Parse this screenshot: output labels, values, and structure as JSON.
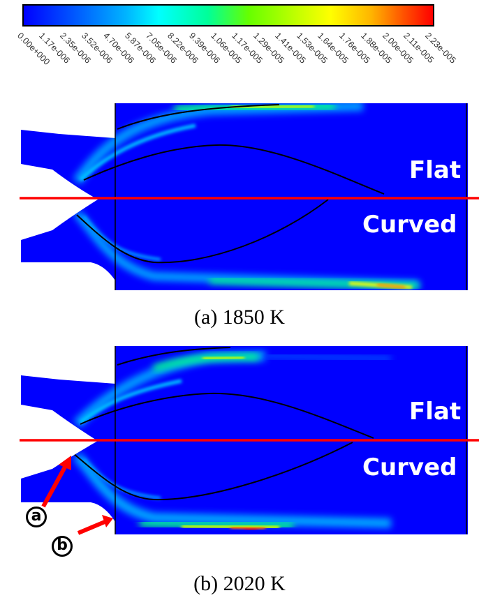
{
  "colorbar": {
    "labels": [
      "0.00e+000",
      "1.17e-006",
      "2.35e-006",
      "3.52e-006",
      "4.70e-006",
      "5.87e-006",
      "7.05e-006",
      "8.22e-006",
      "9.39e-006",
      "1.06e-005",
      "1.17e-005",
      "1.29e-005",
      "1.41e-005",
      "1.53e-005",
      "1.64e-005",
      "1.76e-005",
      "1.88e-005",
      "2.00e-005",
      "2.11e-005",
      "2.23e-005"
    ],
    "colormap": [
      "#0000ff",
      "#00ffff",
      "#00ff00",
      "#ffff00",
      "#ff0000"
    ]
  },
  "panels": [
    {
      "id": "a",
      "caption": "(a) 1850 K",
      "top_label": "Flat",
      "bottom_label": "Curved"
    },
    {
      "id": "b",
      "caption": "(b) 2020 K",
      "top_label": "Flat",
      "bottom_label": "Curved",
      "markers": [
        {
          "label": "a"
        },
        {
          "label": "b"
        }
      ]
    }
  ],
  "colors": {
    "field_background": "#0000ff",
    "divider_line": "#ff0000",
    "contour_line": "#000000",
    "arrow": "#ff0000"
  }
}
